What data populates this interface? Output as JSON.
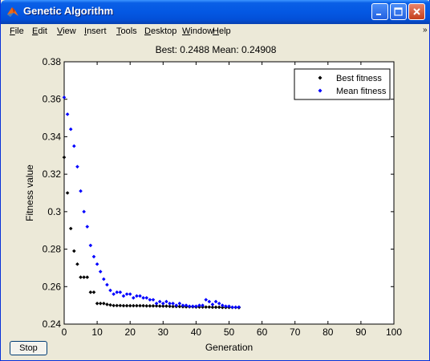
{
  "window": {
    "title": "Genetic Algorithm",
    "icon": "matlab-icon",
    "controls": {
      "minimize": "minimize-icon",
      "maximize": "maximize-icon",
      "close": "close-icon"
    }
  },
  "menu": {
    "items": [
      "File",
      "Edit",
      "View",
      "Insert",
      "Tools",
      "Desktop",
      "Window",
      "Help"
    ]
  },
  "stop_label": "Stop",
  "colors": {
    "titlebar": "#0458e3",
    "best_series": "#000000",
    "mean_series": "#0000ff",
    "window_bg": "#ece9d8"
  },
  "chart_data": {
    "type": "scatter",
    "title": "Best: 0.2488 Mean: 0.24908",
    "xlabel": "Generation",
    "ylabel": "Fitness value",
    "xlim": [
      0,
      100
    ],
    "ylim": [
      0.24,
      0.38
    ],
    "xticks": [
      "0",
      "10",
      "20",
      "30",
      "40",
      "50",
      "60",
      "70",
      "80",
      "90",
      "100"
    ],
    "yticks": [
      "0.24",
      "0.26",
      "0.28",
      "0.3",
      "0.32",
      "0.34",
      "0.36",
      "0.38"
    ],
    "grid": false,
    "legend_position": "top-right",
    "series": [
      {
        "name": "Best fitness",
        "color": "#000000",
        "x": [
          0,
          1,
          2,
          3,
          4,
          5,
          6,
          7,
          8,
          9,
          10,
          11,
          12,
          13,
          14,
          15,
          16,
          17,
          18,
          19,
          20,
          21,
          22,
          23,
          24,
          25,
          26,
          27,
          28,
          29,
          30,
          31,
          32,
          33,
          34,
          35,
          36,
          37,
          38,
          39,
          40,
          41,
          42,
          43,
          44,
          45,
          46,
          47,
          48,
          49,
          50,
          51,
          52,
          53
        ],
        "y": [
          0.329,
          0.31,
          0.291,
          0.279,
          0.272,
          0.265,
          0.265,
          0.265,
          0.257,
          0.257,
          0.251,
          0.251,
          0.251,
          0.2505,
          0.2502,
          0.2499,
          0.2499,
          0.2499,
          0.2498,
          0.2498,
          0.2498,
          0.2498,
          0.2498,
          0.2498,
          0.2498,
          0.2497,
          0.2497,
          0.2497,
          0.2497,
          0.2496,
          0.2496,
          0.2496,
          0.2495,
          0.2494,
          0.2494,
          0.2494,
          0.2493,
          0.2492,
          0.2492,
          0.2492,
          0.2491,
          0.2491,
          0.2491,
          0.2491,
          0.2491,
          0.249,
          0.249,
          0.249,
          0.2489,
          0.2489,
          0.2489,
          0.2489,
          0.2489,
          0.2488
        ]
      },
      {
        "name": "Mean fitness",
        "color": "#0000ff",
        "x": [
          0,
          1,
          2,
          3,
          4,
          5,
          6,
          7,
          8,
          9,
          10,
          11,
          12,
          13,
          14,
          15,
          16,
          17,
          18,
          19,
          20,
          21,
          22,
          23,
          24,
          25,
          26,
          27,
          28,
          29,
          30,
          31,
          32,
          33,
          34,
          35,
          36,
          37,
          38,
          39,
          40,
          41,
          42,
          43,
          44,
          45,
          46,
          47,
          48,
          49,
          50,
          51,
          52,
          53
        ],
        "y": [
          0.361,
          0.352,
          0.344,
          0.335,
          0.324,
          0.311,
          0.3,
          0.292,
          0.282,
          0.276,
          0.272,
          0.268,
          0.264,
          0.261,
          0.258,
          0.256,
          0.257,
          0.257,
          0.255,
          0.256,
          0.256,
          0.254,
          0.255,
          0.255,
          0.254,
          0.254,
          0.253,
          0.253,
          0.251,
          0.252,
          0.251,
          0.252,
          0.251,
          0.251,
          0.25,
          0.251,
          0.25,
          0.25,
          0.2495,
          0.2495,
          0.2495,
          0.25,
          0.25,
          0.253,
          0.252,
          0.2505,
          0.252,
          0.251,
          0.25,
          0.2495,
          0.2495,
          0.249,
          0.249,
          0.2491
        ]
      }
    ]
  }
}
